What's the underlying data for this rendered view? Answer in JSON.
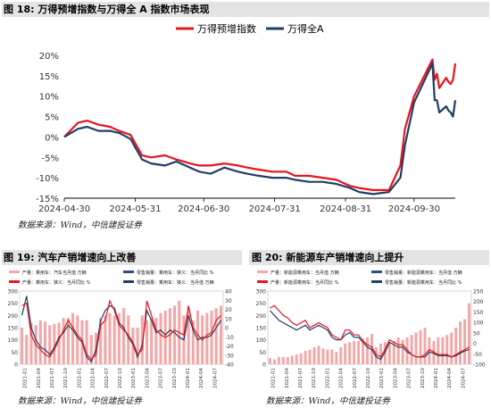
{
  "top": {
    "title": "图 18: 万得预增指数与万得全 A 指数市场表现",
    "source": "数据来源：Wind，中信建投证券"
  },
  "bottom_left": {
    "title": "图 19: 汽车产销增速向上改善",
    "source": "数据来源：Wind，中信建投证券"
  },
  "bottom_right": {
    "title": "图 20: 新能源车产销增速向上提升",
    "source": "数据来源：Wind，中信建投证券"
  },
  "colors": {
    "red": "#e8141c",
    "navy": "#1f3f66",
    "lightred": "#f2a8a8",
    "blue": "#2e4f86",
    "gray": "#8c8c8c"
  },
  "chart_data": [
    {
      "type": "line",
      "x": [
        "2024-04-30",
        "2024-05-06",
        "2024-05-10",
        "2024-05-15",
        "2024-05-20",
        "2024-05-24",
        "2024-05-29",
        "2024-06-03",
        "2024-06-07",
        "2024-06-13",
        "2024-06-18",
        "2024-06-24",
        "2024-06-28",
        "2024-07-03",
        "2024-07-09",
        "2024-07-15",
        "2024-07-19",
        "2024-07-24",
        "2024-07-30",
        "2024-08-05",
        "2024-08-09",
        "2024-08-15",
        "2024-08-21",
        "2024-08-27",
        "2024-09-02",
        "2024-09-06",
        "2024-09-12",
        "2024-09-19",
        "2024-09-24",
        "2024-09-26",
        "2024-09-30",
        "2024-10-08",
        "2024-10-09",
        "2024-10-10",
        "2024-10-11",
        "2024-10-14",
        "2024-10-15",
        "2024-10-16",
        "2024-10-17",
        "2024-10-18"
      ],
      "series": [
        {
          "name": "万得预增指数",
          "color": "#e8141c",
          "values": [
            0.0,
            3.5,
            4.0,
            3.0,
            2.5,
            1.5,
            0.5,
            -4.5,
            -5.0,
            -4.5,
            -5.5,
            -6.5,
            -7.0,
            -7.0,
            -6.5,
            -7.0,
            -7.5,
            -8.0,
            -8.5,
            -8.5,
            -9.5,
            -9.5,
            -10.0,
            -10.5,
            -12.0,
            -12.5,
            -13.0,
            -13.0,
            -7.0,
            2.0,
            10.0,
            19.0,
            14.0,
            15.5,
            12.0,
            14.5,
            13.5,
            13.0,
            14.0,
            18.0
          ]
        },
        {
          "name": "万得全A",
          "color": "#1f3f66",
          "values": [
            0.0,
            2.0,
            2.5,
            1.5,
            1.5,
            1.0,
            -0.5,
            -5.5,
            -6.5,
            -7.0,
            -6.0,
            -7.5,
            -8.5,
            -9.0,
            -7.5,
            -8.5,
            -9.0,
            -9.5,
            -10.0,
            -10.0,
            -10.5,
            -11.0,
            -11.0,
            -11.5,
            -12.5,
            -13.5,
            -14.0,
            -13.5,
            -10.0,
            -2.0,
            8.5,
            18.0,
            9.0,
            9.0,
            6.0,
            7.5,
            6.5,
            6.0,
            5.0,
            9.0
          ]
        }
      ],
      "xticks": [
        "2024-04-30",
        "2024-05-31",
        "2024-06-30",
        "2024-07-31",
        "2024-08-31",
        "2024-09-30"
      ],
      "yticks": [
        "20%",
        "15%",
        "10%",
        "5%",
        "0%",
        "-5%",
        "-10%",
        "-15%"
      ],
      "ylim": [
        -15,
        20
      ],
      "legend_position": "top"
    },
    {
      "type": "bar+line",
      "legend": [
        "产量：乘用车：汽车当月值 万辆",
        "零售销量：乘用车：狭义：当月同比 %",
        "产量：乘用车：狭义：当月同比 %",
        "零售销量：乘用车：狭义：当月值 万辆"
      ],
      "left_yticks": [
        "300",
        "250",
        "200",
        "150",
        "100",
        "50",
        "0"
      ],
      "right_yticks": [
        "40",
        "30",
        "20",
        "10",
        "0",
        "-10",
        "-20",
        "-30",
        "-40"
      ],
      "left_ylim": [
        0,
        300
      ],
      "right_ylim": [
        -40,
        40
      ],
      "xticks": [
        "2021-01",
        "2021-04",
        "2021-07",
        "2021-10",
        "2022-01",
        "2022-04",
        "2022-07",
        "2022-10",
        "2023-01",
        "2023-04",
        "2023-07",
        "2023-10",
        "2024-01",
        "2024-04",
        "2024-07"
      ],
      "bars": [
        150,
        120,
        170,
        160,
        180,
        175,
        160,
        165,
        170,
        190,
        190,
        210,
        200,
        180,
        180,
        120,
        130,
        190,
        200,
        210,
        200,
        210,
        230,
        200,
        150,
        150,
        200,
        180,
        190,
        190,
        210,
        220,
        230,
        240,
        260,
        200,
        230,
        180,
        220,
        200,
        210,
        220,
        230,
        240
      ],
      "line_red": [
        240,
        250,
        120,
        80,
        60,
        40,
        30,
        60,
        100,
        140,
        180,
        150,
        120,
        100,
        40,
        20,
        40,
        160,
        180,
        260,
        220,
        160,
        140,
        120,
        90,
        40,
        60,
        260,
        200,
        140,
        120,
        110,
        120,
        140,
        130,
        120,
        240,
        150,
        120,
        100,
        120,
        130,
        180,
        200
      ],
      "line_navy": [
        200,
        280,
        150,
        100,
        70,
        60,
        40,
        70,
        110,
        130,
        160,
        140,
        110,
        90,
        30,
        10,
        60,
        180,
        220,
        240,
        230,
        170,
        150,
        110,
        80,
        30,
        80,
        220,
        180,
        130,
        140,
        120,
        140,
        130,
        110,
        100,
        200,
        140,
        100,
        110,
        110,
        120,
        150,
        180
      ]
    },
    {
      "type": "bar+line",
      "legend": [
        "产量：新能源乘用车：当月值 万辆",
        "零售销量：新能源乘用车：当月值 万辆",
        "产量：新能源乘用车：当月同比 %",
        "零售销量：新能源乘用车：当月同比 %"
      ],
      "left_yticks": [
        "300",
        "250",
        "200",
        "150",
        "100",
        "50",
        "0"
      ],
      "right_yticks": [
        "250",
        "200",
        "150",
        "100",
        "50",
        "0",
        "-50",
        "-100"
      ],
      "left_ylim": [
        0,
        300
      ],
      "right_ylim": [
        -100,
        250
      ],
      "xticks": [
        "2021-01",
        "2021-04",
        "2021-07",
        "2021-10",
        "2022-01",
        "2022-04",
        "2022-07",
        "2022-10",
        "2023-01",
        "2023-04",
        "2023-07",
        "2023-10",
        "2024-01",
        "2024-04",
        "2024-07"
      ],
      "bars": [
        25,
        20,
        30,
        30,
        30,
        35,
        40,
        45,
        55,
        60,
        70,
        75,
        65,
        60,
        60,
        50,
        70,
        85,
        90,
        95,
        95,
        105,
        110,
        125,
        70,
        85,
        90,
        90,
        95,
        110,
        100,
        110,
        120,
        130,
        140,
        150,
        110,
        95,
        110,
        110,
        120,
        130,
        150,
        175,
        185,
        250
      ],
      "line_red": [
        230,
        240,
        220,
        200,
        190,
        170,
        160,
        170,
        180,
        150,
        160,
        170,
        160,
        150,
        120,
        110,
        100,
        140,
        140,
        120,
        120,
        95,
        80,
        70,
        40,
        30,
        60,
        100,
        90,
        80,
        80,
        60,
        40,
        30,
        30,
        40,
        60,
        50,
        40,
        40,
        40,
        30,
        40,
        50,
        60,
        70
      ],
      "line_navy": [
        220,
        200,
        180,
        170,
        160,
        150,
        140,
        150,
        160,
        140,
        150,
        160,
        150,
        140,
        110,
        100,
        100,
        120,
        130,
        110,
        110,
        90,
        70,
        60,
        30,
        20,
        50,
        90,
        80,
        70,
        70,
        50,
        40,
        30,
        30,
        30,
        50,
        45,
        35,
        35,
        35,
        30,
        35,
        45,
        55,
        60
      ]
    }
  ]
}
